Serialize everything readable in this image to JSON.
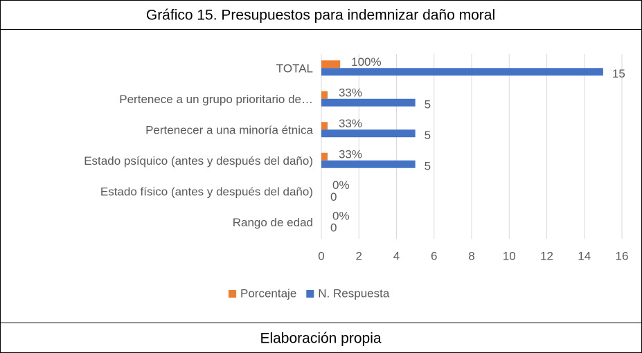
{
  "chart_data": {
    "type": "bar",
    "orientation": "horizontal",
    "title": "Gráfico 15. Presupuestos para indemnizar daño moral",
    "footer": "Elaboración propia",
    "categories": [
      "TOTAL",
      "Pertenece a un grupo prioritario de…",
      "Pertenecer a una minoría étnica",
      "Estado psíquico (antes y después del daño)",
      "Estado físico (antes y después del daño)",
      "Rango de edad"
    ],
    "series": [
      {
        "name": "Porcentaje",
        "color": "#ed7d31",
        "values": [
          1,
          0.33,
          0.33,
          0.33,
          0,
          0
        ],
        "value_labels": [
          "100%",
          "33%",
          "33%",
          "33%",
          "0%",
          "0%"
        ]
      },
      {
        "name": "N. Respuesta",
        "color": "#4472c4",
        "values": [
          15,
          5,
          5,
          5,
          0,
          0
        ]
      }
    ],
    "xlim": [
      0,
      16
    ],
    "xticks": [
      0,
      2,
      4,
      6,
      8,
      10,
      12,
      14,
      16
    ],
    "grid": true,
    "legend": "bottom"
  }
}
